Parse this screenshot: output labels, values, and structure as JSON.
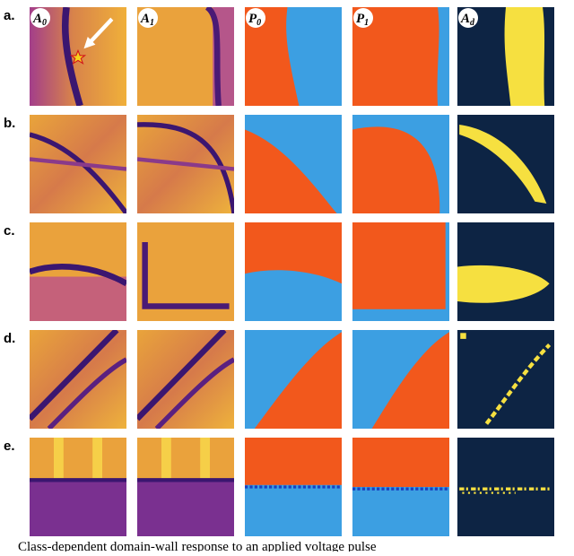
{
  "figure": {
    "row_labels": [
      "a.",
      "b.",
      "c.",
      "d.",
      "e."
    ],
    "column_labels": [
      {
        "main": "A",
        "sub": "0"
      },
      {
        "main": "A",
        "sub": "1"
      },
      {
        "main": "P",
        "sub": "0"
      },
      {
        "main": "P",
        "sub": "1"
      },
      {
        "main": "A",
        "sub": "d"
      }
    ],
    "caption": "Class-dependent domain-wall response to an applied voltage pulse"
  }
}
